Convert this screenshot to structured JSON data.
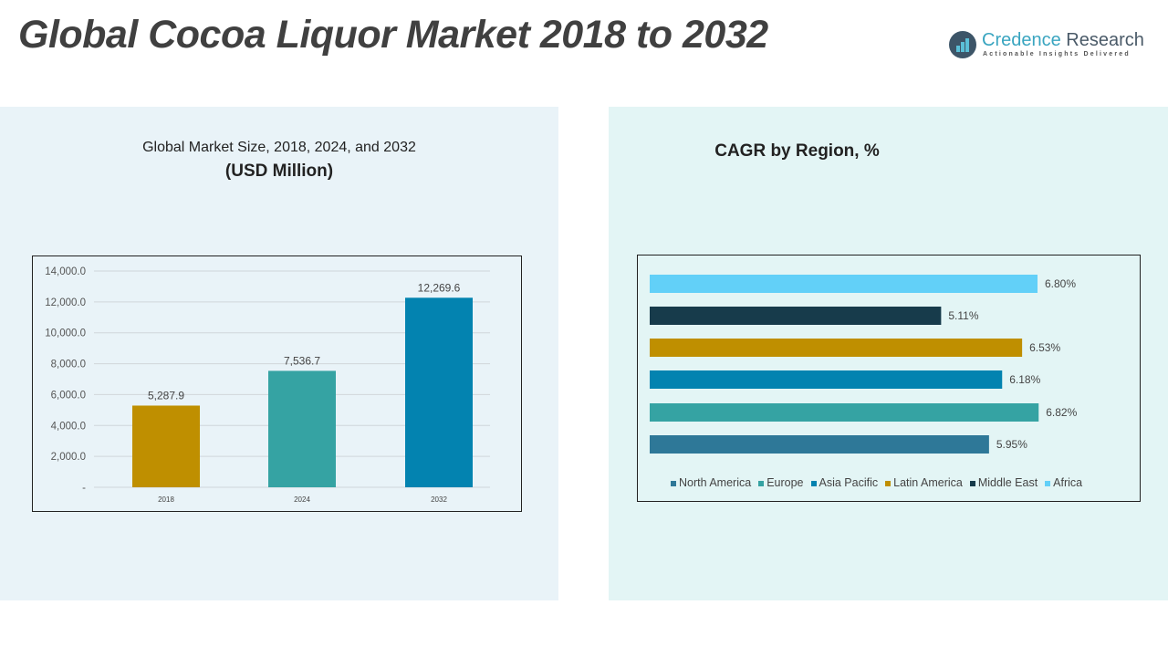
{
  "title": "Global Cocoa Liquor Market 2018 to 2032",
  "logo": {
    "name_a": "Credence",
    "name_b": "Research",
    "tagline": "Actionable Insights Delivered"
  },
  "chart_data": [
    {
      "type": "bar",
      "title": "Global Market Size, 2018, 2024, and 2032",
      "subtitle": "(USD Million)",
      "categories": [
        "2018",
        "2024",
        "2032"
      ],
      "values": [
        5287.9,
        7536.7,
        12269.6
      ],
      "data_labels": [
        "5,287.9",
        "7,536.7",
        "12,269.6"
      ],
      "colors": [
        "#bf8f00",
        "#35a3a3",
        "#0383b0"
      ],
      "ylim": [
        0,
        14000
      ],
      "yticks": [
        "-",
        "2,000.0",
        "4,000.0",
        "6,000.0",
        "8,000.0",
        "10,000.0",
        "12,000.0",
        "14,000.0"
      ],
      "grid": true
    },
    {
      "type": "bar",
      "orientation": "horizontal",
      "title": "CAGR by Region, %",
      "series": [
        {
          "name": "North America",
          "value": 5.95,
          "label": "5.95%",
          "color": "#2e7898"
        },
        {
          "name": "Europe",
          "value": 6.82,
          "label": "6.82%",
          "color": "#35a3a3"
        },
        {
          "name": "Asia Pacific",
          "value": 6.18,
          "label": "6.18%",
          "color": "#0383b0"
        },
        {
          "name": "Latin America",
          "value": 6.53,
          "label": "6.53%",
          "color": "#bf8f00"
        },
        {
          "name": "Middle East",
          "value": 5.11,
          "label": "5.11%",
          "color": "#173b4b"
        },
        {
          "name": "Africa",
          "value": 6.8,
          "label": "6.80%",
          "color": "#62d0f8"
        }
      ],
      "xlim": [
        0,
        8.4
      ],
      "legend": "bottom",
      "grid": false
    }
  ]
}
